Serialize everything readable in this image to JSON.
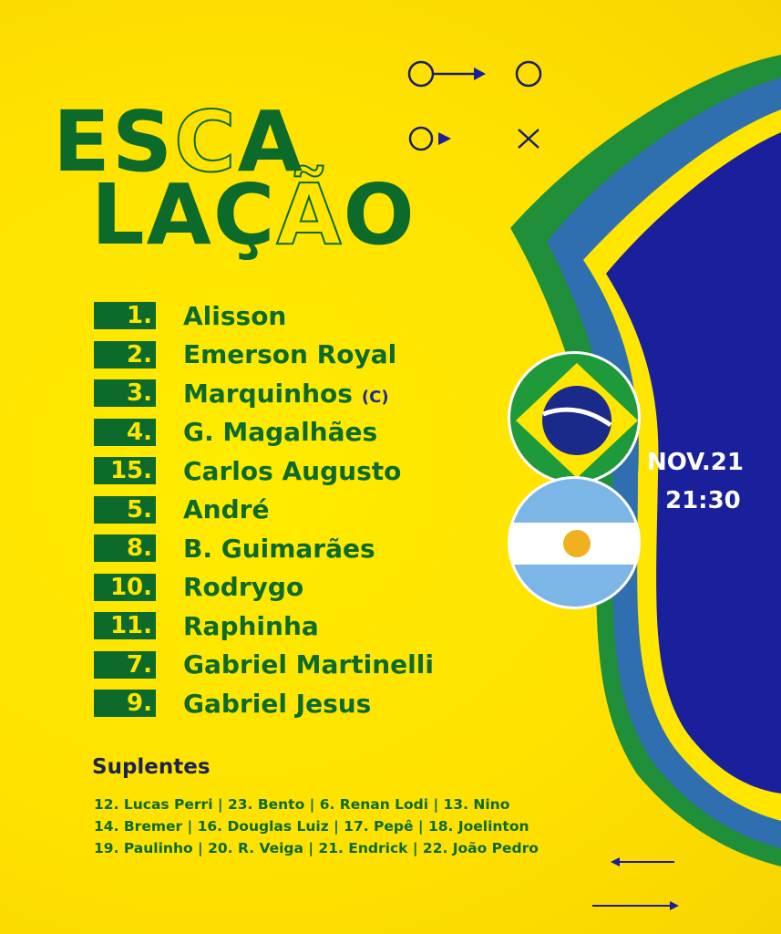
{
  "title": {
    "line1_solid": "ES",
    "line1_outline": "C",
    "line1_end": "A",
    "line2_solid": "LAÇ",
    "line2_outline": "Ã",
    "line2_end": "O"
  },
  "match": {
    "date": "NOV.21",
    "time": "21:30",
    "home_flag": "brazil-flag",
    "away_flag": "argentina-flag"
  },
  "lineup": [
    {
      "number": "1.",
      "name": "Alisson"
    },
    {
      "number": "2.",
      "name": "Emerson Royal"
    },
    {
      "number": "3.",
      "name": "Marquinhos",
      "badge": "(C)"
    },
    {
      "number": "4.",
      "name": "G. Magalhães"
    },
    {
      "number": "15.",
      "name": "Carlos Augusto"
    },
    {
      "number": "5.",
      "name": "André"
    },
    {
      "number": "8.",
      "name": "B. Guimarães"
    },
    {
      "number": "10.",
      "name": "Rodrygo"
    },
    {
      "number": "11.",
      "name": "Raphinha"
    },
    {
      "number": "7.",
      "name": "Gabriel Martinelli"
    },
    {
      "number": "9.",
      "name": "Gabriel Jesus"
    }
  ],
  "subs": {
    "heading": "Suplentes",
    "lines": [
      "12. Lucas Perri | 23. Bento | 6. Renan Lodi | 13. Nino",
      "14. Bremer | 16. Douglas Luiz | 17. Pepê | 18. Joelinton",
      "19. Paulinho | 20. R. Veiga | 21. Endrick | 22. João Pedro"
    ]
  },
  "colors": {
    "green": "#0c6b2b",
    "yellow": "#ffe600",
    "blue": "#1a1f9c"
  }
}
